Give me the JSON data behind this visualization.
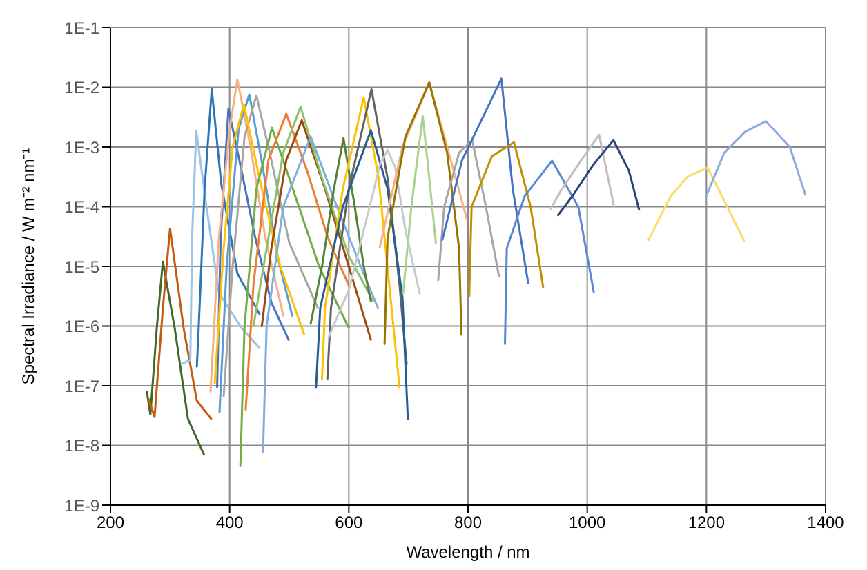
{
  "chart_data": {
    "type": "line",
    "xlabel": "Wavelength / nm",
    "ylabel": "Spectral Irradiance / W m⁻² nm⁻¹",
    "log": "y",
    "grid": true,
    "marker": "none",
    "line_style": "solid",
    "xlim": [
      200,
      1400
    ],
    "xticks": [
      200,
      400,
      600,
      800,
      1000,
      1200,
      1400
    ],
    "ylim": [
      1e-09,
      0.1
    ],
    "yticks": [
      {
        "value": 1e-09,
        "label": "1E-9"
      },
      {
        "value": 1e-08,
        "label": "1E-8"
      },
      {
        "value": 1e-07,
        "label": "1E-7"
      },
      {
        "value": 1e-06,
        "label": "1E-6"
      },
      {
        "value": 1e-05,
        "label": "1E-5"
      },
      {
        "value": 0.0001,
        "label": "1E-4"
      },
      {
        "value": 0.001,
        "label": "1E-3"
      },
      {
        "value": 0.01,
        "label": "1E-2"
      },
      {
        "value": 0.1,
        "label": "1E-1"
      }
    ],
    "series": [
      {
        "color": "#43682b",
        "x": [
          261,
          267,
          278,
          288,
          308,
          330,
          357
        ],
        "values": [
          8e-08,
          3.3e-08,
          1e-06,
          1.2e-05,
          9e-07,
          2.8e-08,
          7e-09
        ]
      },
      {
        "color": "#c55a11",
        "x": [
          264,
          274,
          288,
          300,
          323,
          345,
          369
        ],
        "values": [
          6e-08,
          3e-08,
          2e-06,
          4.3e-05,
          9e-07,
          5.6e-08,
          2.8e-08
        ]
      },
      {
        "color": "#9dc3e6",
        "x": [
          319,
          334,
          337,
          344,
          360,
          382,
          420,
          450
        ],
        "values": [
          2.3e-07,
          2.7e-07,
          3e-05,
          0.0019,
          0.00012,
          3.6e-06,
          9.3e-07,
          4.3e-07
        ]
      },
      {
        "color": "#2e75b6",
        "x": [
          345,
          348,
          358,
          370,
          386,
          413,
          450
        ],
        "values": [
          2.1e-07,
          9e-07,
          0.0002,
          0.0093,
          0.00024,
          7.6e-06,
          1.6e-06
        ]
      },
      {
        "color": "#4472c4",
        "x": [
          379,
          385,
          398,
          420,
          443,
          470,
          499
        ],
        "values": [
          9.5e-08,
          3e-05,
          0.0044,
          0.0004,
          3e-05,
          2.5e-06,
          5.9e-07
        ]
      },
      {
        "color": "#f4b183",
        "x": [
          368,
          382,
          400,
          413,
          435,
          460,
          490
        ],
        "values": [
          8e-08,
          3e-05,
          0.002,
          0.0135,
          0.001,
          3e-05,
          1.5e-06
        ]
      },
      {
        "color": "#5b9bd5",
        "x": [
          383,
          395,
          415,
          433,
          455,
          480,
          505
        ],
        "values": [
          3.6e-08,
          1e-05,
          0.002,
          0.0076,
          0.0005,
          1.5e-05,
          1.5e-06
        ]
      },
      {
        "color": "#a5a5a5",
        "x": [
          390,
          405,
          425,
          445,
          470,
          500,
          548
        ],
        "values": [
          6.7e-08,
          1e-05,
          0.0015,
          0.0073,
          0.0006,
          2.5e-05,
          2e-06
        ]
      },
      {
        "color": "#ffc000",
        "x": [
          375,
          390,
          405,
          424,
          450,
          485,
          525
        ],
        "values": [
          1.1e-07,
          2e-05,
          0.001,
          0.0052,
          0.0003,
          1e-05,
          7.2e-07
        ]
      },
      {
        "color": "#70ad47",
        "x": [
          418,
          425,
          445,
          471,
          500,
          550,
          600
        ],
        "values": [
          4.5e-09,
          1e-06,
          0.0002,
          0.0021,
          0.0003,
          1e-05,
          9.3e-07
        ]
      },
      {
        "color": "#ed7d31",
        "x": [
          427,
          440,
          465,
          495,
          530,
          565,
          600
        ],
        "values": [
          4e-08,
          5e-06,
          0.0006,
          0.0036,
          0.0004,
          3e-05,
          4.8e-06
        ]
      },
      {
        "color": "#9e480e",
        "x": [
          454,
          470,
          495,
          521,
          560,
          600,
          637
        ],
        "values": [
          1e-06,
          2e-05,
          0.0006,
          0.0028,
          0.0002,
          1e-05,
          5.9e-07
        ]
      },
      {
        "color": "#8cc168",
        "x": [
          440,
          465,
          490,
          519,
          555,
          600,
          641
        ],
        "values": [
          1e-06,
          3e-05,
          0.0008,
          0.0047,
          0.0003,
          1.5e-05,
          2.6e-06
        ]
      },
      {
        "color": "#7cafdd",
        "x": [
          456,
          462,
          490,
          536,
          580,
          620,
          649
        ],
        "values": [
          7.6e-09,
          1e-06,
          0.0001,
          0.0015,
          0.0001,
          1e-05,
          2e-06
        ]
      },
      {
        "color": "#548235",
        "x": [
          536,
          555,
          575,
          591,
          610,
          625,
          637
        ],
        "values": [
          1.1e-06,
          1e-05,
          0.0002,
          0.0014,
          0.0001,
          1e-05,
          2.6e-06
        ]
      },
      {
        "color": "#ffc000",
        "x": [
          555,
          560,
          590,
          625,
          650,
          670,
          685
        ],
        "values": [
          1.3e-07,
          2e-06,
          0.0002,
          0.0068,
          0.0003,
          3e-06,
          9.5e-08
        ]
      },
      {
        "color": "#636363",
        "x": [
          564,
          570,
          600,
          638,
          665,
          685,
          697
        ],
        "values": [
          1.3e-07,
          2e-06,
          0.0002,
          0.0093,
          0.0003,
          5e-06,
          2.3e-07
        ]
      },
      {
        "color": "#255e91",
        "x": [
          545,
          552,
          590,
          637,
          665,
          690,
          699
        ],
        "values": [
          9.5e-08,
          2e-06,
          0.0001,
          0.0019,
          0.0002,
          3e-06,
          2.8e-08
        ]
      },
      {
        "color": "#c9c9c9",
        "x": [
          566,
          600,
          635,
          652,
          665,
          678,
          695,
          719
        ],
        "values": [
          6.5e-07,
          4e-06,
          0.0001,
          0.0005,
          0.00089,
          0.00045,
          4e-05,
          3.5e-06
        ]
      },
      {
        "color": "#a9d18e",
        "x": [
          691,
          705,
          724,
          735,
          746
        ],
        "values": [
          3.5e-06,
          0.0001,
          0.0033,
          0.0003,
          2.5e-05
        ]
      },
      {
        "color": "#f4b183",
        "x": [
          652,
          690,
          735,
          765,
          798
        ],
        "values": [
          2.1e-05,
          0.001,
          0.012,
          0.001,
          6.2e-05
        ]
      },
      {
        "color": "#997300",
        "x": [
          660,
          665,
          695,
          735,
          765,
          785,
          789
        ],
        "values": [
          5e-07,
          3e-05,
          0.0015,
          0.012,
          0.0008,
          2e-05,
          7.2e-07
        ]
      },
      {
        "color": "#a5a5a5",
        "x": [
          750,
          760,
          785,
          807,
          830,
          852
        ],
        "values": [
          5.9e-06,
          0.0001,
          0.0008,
          0.0013,
          0.0001,
          6.8e-06
        ]
      },
      {
        "color": "#4472c4",
        "x": [
          757,
          790,
          830,
          856,
          875,
          901
        ],
        "values": [
          2.8e-05,
          0.0006,
          0.004,
          0.014,
          0.0002,
          5.2e-06
        ]
      },
      {
        "color": "#bf9000",
        "x": [
          802,
          806,
          840,
          877,
          905,
          926
        ],
        "values": [
          3.2e-06,
          0.0001,
          0.0007,
          0.0012,
          0.0001,
          4.5e-06
        ]
      },
      {
        "color": "#5b87d6",
        "x": [
          862,
          865,
          895,
          941,
          985,
          1011
        ],
        "values": [
          5e-07,
          2e-05,
          0.00015,
          0.00059,
          0.0001,
          3.7e-06
        ]
      },
      {
        "color": "#bfbfbf",
        "x": [
          939,
          955,
          990,
          1020,
          1045
        ],
        "values": [
          9.3e-05,
          0.00018,
          0.0006,
          0.0016,
          0.0001
        ]
      },
      {
        "color": "#264478",
        "x": [
          951,
          975,
          1010,
          1044,
          1070,
          1087
        ],
        "values": [
          7.2e-05,
          0.00015,
          0.0005,
          0.0013,
          0.0004,
          8.9e-05
        ]
      },
      {
        "color": "#ffd966",
        "x": [
          1103,
          1140,
          1169,
          1202,
          1235,
          1263
        ],
        "values": [
          2.8e-05,
          0.00015,
          0.00032,
          0.00045,
          0.0001,
          2.7e-05
        ]
      },
      {
        "color": "#8faadc",
        "x": [
          1199,
          1230,
          1265,
          1300,
          1340,
          1366
        ],
        "values": [
          0.000145,
          0.0008,
          0.0018,
          0.0027,
          0.001,
          0.00016
        ]
      }
    ]
  }
}
